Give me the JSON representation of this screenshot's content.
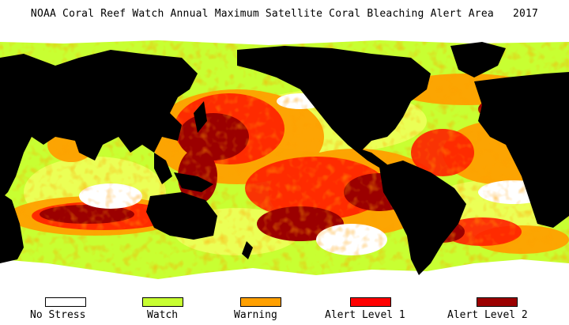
{
  "title": "NOAA Coral Reef Watch Annual Maximum Satellite Coral Bleaching Alert Area   2017",
  "legend": [
    {
      "label": "No Stress",
      "color": "#ffffff"
    },
    {
      "label": "Watch",
      "color": "#c8ff32"
    },
    {
      "label": "Warning",
      "color": "#ffa000"
    },
    {
      "label": "Alert Level 1",
      "color": "#ff0000"
    },
    {
      "label": "Alert Level 2",
      "color": "#9b0000"
    }
  ],
  "colors": {
    "land": "#000000",
    "ice": "#ffffff",
    "yellow": "#eeff5a"
  }
}
